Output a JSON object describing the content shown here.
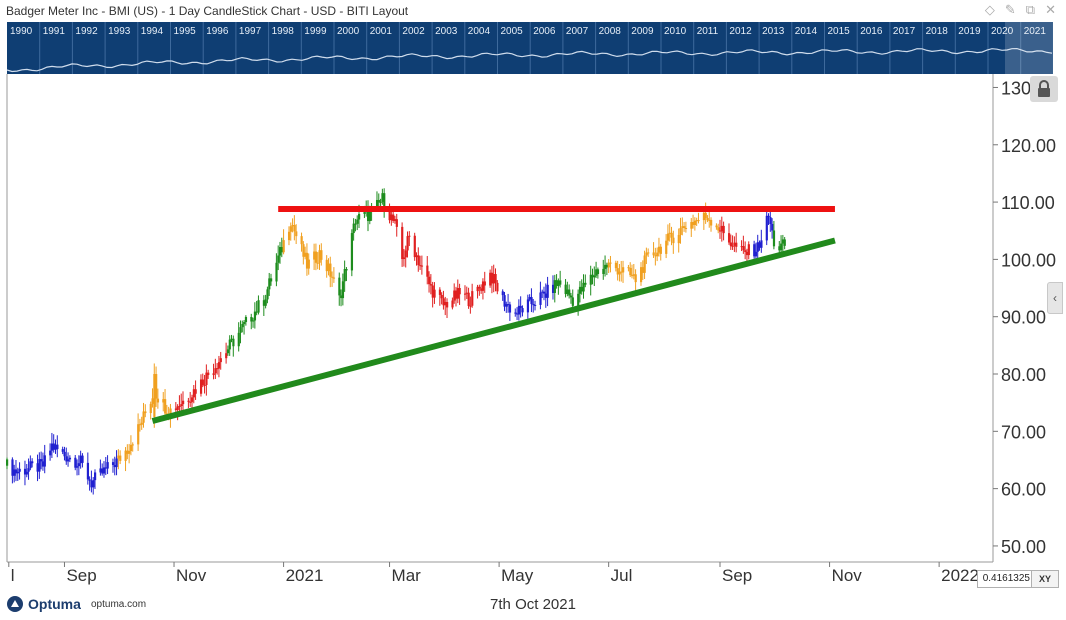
{
  "window": {
    "title": "Badger Meter Inc - BMI (US) - 1 Day CandleStick Chart - USD - BITI Layout",
    "icons": [
      "diamond-icon",
      "pin-icon",
      "restore-icon",
      "close-icon"
    ]
  },
  "overview": {
    "years": [
      "1990",
      "1991",
      "1992",
      "1993",
      "1994",
      "1995",
      "1996",
      "1997",
      "1998",
      "1999",
      "2000",
      "2001",
      "2002",
      "2003",
      "2004",
      "2005",
      "2006",
      "2007",
      "2008",
      "2009",
      "2010",
      "2011",
      "2012",
      "2013",
      "2014",
      "2015",
      "2016",
      "2017",
      "2018",
      "2019",
      "2020",
      "2021"
    ]
  },
  "chart_data": {
    "type": "candlestick",
    "title": "Badger Meter Inc - BMI (US) - 1 Day CandleStick Chart - USD - BITI Layout",
    "ylim": [
      46.5,
      132
    ],
    "y_ticks": [
      50,
      60,
      70,
      80,
      90,
      100,
      110,
      120,
      130
    ],
    "y_tick_labels": [
      "50.00",
      "60.00",
      "70.00",
      "80.00",
      "90.00",
      "100.00",
      "110.00",
      "120.00",
      "130"
    ],
    "x_labels": [
      "l",
      "Sep",
      "Nov",
      "2021",
      "Mar",
      "May",
      "Jul",
      "Sep",
      "Nov",
      "2022"
    ],
    "x_range": [
      "2020-07-31",
      "2022-01-31"
    ],
    "grid": false,
    "candle_colors": {
      "green": "#1e8c1e",
      "orange": "#f0a020",
      "red": "#e02020",
      "blue": "#2020d0"
    },
    "price_path": [
      [
        "2020-07-31",
        64
      ],
      [
        "2020-08-05",
        63
      ],
      [
        "2020-08-20",
        64
      ],
      [
        "2020-08-25",
        67.5
      ],
      [
        "2020-08-31",
        66
      ],
      [
        "2020-09-10",
        64.5
      ],
      [
        "2020-09-16",
        61
      ],
      [
        "2020-09-23",
        63
      ],
      [
        "2020-10-01",
        65
      ],
      [
        "2020-10-06",
        67
      ],
      [
        "2020-10-13",
        71
      ],
      [
        "2020-10-15",
        72.5
      ],
      [
        "2020-10-21",
        77
      ],
      [
        "2020-10-29",
        73.5
      ],
      [
        "2020-11-09",
        76
      ],
      [
        "2020-11-20",
        80
      ],
      [
        "2020-11-30",
        84
      ],
      [
        "2020-12-09",
        88
      ],
      [
        "2020-12-21",
        93
      ],
      [
        "2020-12-30",
        101
      ],
      [
        "2021-01-05",
        107
      ],
      [
        "2021-01-07",
        105
      ],
      [
        "2021-01-14",
        99
      ],
      [
        "2021-01-21",
        101
      ],
      [
        "2021-01-28",
        97
      ],
      [
        "2021-02-01",
        93
      ],
      [
        "2021-02-05",
        99
      ],
      [
        "2021-02-10",
        107
      ],
      [
        "2021-02-19",
        108
      ],
      [
        "2021-02-25",
        110.5
      ],
      [
        "2021-03-04",
        106
      ],
      [
        "2021-03-08",
        100
      ],
      [
        "2021-03-12",
        104
      ],
      [
        "2021-03-18",
        99
      ],
      [
        "2021-03-24",
        95
      ],
      [
        "2021-03-31",
        92
      ],
      [
        "2021-04-09",
        94
      ],
      [
        "2021-04-15",
        93
      ],
      [
        "2021-04-26",
        97.5
      ],
      [
        "2021-05-03",
        93
      ],
      [
        "2021-05-10",
        90.5
      ],
      [
        "2021-05-17",
        92
      ],
      [
        "2021-05-27",
        94
      ],
      [
        "2021-06-03",
        96
      ],
      [
        "2021-06-11",
        93
      ],
      [
        "2021-06-17",
        95
      ],
      [
        "2021-06-24",
        98
      ],
      [
        "2021-07-01",
        99
      ],
      [
        "2021-07-09",
        98
      ],
      [
        "2021-07-16",
        96.5
      ],
      [
        "2021-07-22",
        100
      ],
      [
        "2021-08-02",
        103
      ],
      [
        "2021-08-13",
        106
      ],
      [
        "2021-08-20",
        107
      ],
      [
        "2021-08-25",
        107.5
      ],
      [
        "2021-08-30",
        106
      ],
      [
        "2021-09-07",
        103
      ],
      [
        "2021-09-14",
        101
      ],
      [
        "2021-09-22",
        102
      ],
      [
        "2021-09-28",
        107.5
      ],
      [
        "2021-10-01",
        103
      ],
      [
        "2021-10-04",
        102
      ],
      [
        "2021-10-07",
        102.5
      ]
    ],
    "trendlines": [
      {
        "color": "#ee1111",
        "from": [
          "2020-12-29",
          108.8
        ],
        "to": [
          "2021-11-04",
          108.8
        ]
      },
      {
        "color": "#218a1c",
        "from": [
          "2020-10-20",
          71.8
        ],
        "to": [
          "2021-11-04",
          103.3
        ]
      }
    ]
  },
  "controls": {
    "value_box": "0.4161325",
    "xy_button": "XY",
    "lock_icon": "lock-icon",
    "collapse_tab": "‹"
  },
  "footer": {
    "logo_text": "Optuma",
    "site": "optuma.com",
    "date": "7th Oct 2021"
  }
}
